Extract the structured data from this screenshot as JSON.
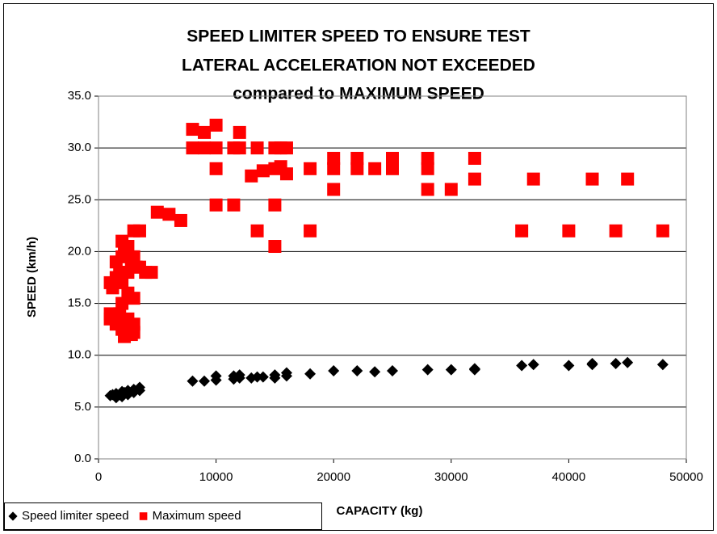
{
  "chart_data": {
    "type": "scatter",
    "title": [
      "SPEED LIMITER SPEED TO ENSURE TEST",
      "LATERAL ACCELERATION NOT EXCEEDED",
      "compared to MAXIMUM SPEED"
    ],
    "x_label": "CAPACITY (kg)",
    "y_label": "SPEED (km/h)",
    "xlim": [
      0,
      50000
    ],
    "xticks": [
      0,
      10000,
      20000,
      30000,
      40000,
      50000
    ],
    "ylim": [
      0,
      35
    ],
    "yticks": [
      {
        "value": 0,
        "label": "0.0"
      },
      {
        "value": 5,
        "label": "5.0"
      },
      {
        "value": 10,
        "label": "10.0"
      },
      {
        "value": 15,
        "label": "15.0"
      },
      {
        "value": 20,
        "label": "20.0"
      },
      {
        "value": 25,
        "label": "25.0"
      },
      {
        "value": 30,
        "label": "30.0"
      },
      {
        "value": 35,
        "label": "35.0"
      }
    ],
    "grid": true,
    "legend": "bottom-left",
    "series": [
      {
        "name": "Speed limiter speed",
        "color": "#000000",
        "marker": "diamond",
        "x": [
          1000,
          1200,
          1500,
          1500,
          1800,
          2000,
          2000,
          2200,
          2500,
          2500,
          3000,
          3000,
          3500,
          3500,
          8000,
          9000,
          10000,
          10000,
          11500,
          11500,
          12000,
          12000,
          13000,
          13500,
          14000,
          15000,
          15000,
          16000,
          16000,
          18000,
          20000,
          22000,
          23500,
          25000,
          28000,
          30000,
          32000,
          32000,
          36000,
          37000,
          40000,
          42000,
          42000,
          44000,
          45000,
          48000
        ],
        "values": [
          6.1,
          6.2,
          5.9,
          6.3,
          6.2,
          6.5,
          6.0,
          6.4,
          6.6,
          6.2,
          6.7,
          6.4,
          6.9,
          6.6,
          7.5,
          7.5,
          8.0,
          7.6,
          8.0,
          7.7,
          7.8,
          8.1,
          7.8,
          7.9,
          7.9,
          8.1,
          7.8,
          8.3,
          8.0,
          8.2,
          8.5,
          8.5,
          8.4,
          8.5,
          8.6,
          8.6,
          8.7,
          8.6,
          9.0,
          9.1,
          9.0,
          9.1,
          9.2,
          9.2,
          9.3,
          9.1
        ]
      },
      {
        "name": "Maximum speed",
        "color": "#ff0000",
        "marker": "square",
        "x": [
          1000,
          1000,
          1000,
          1200,
          1500,
          1500,
          1500,
          1800,
          1800,
          2000,
          2000,
          2000,
          2000,
          2000,
          2200,
          2200,
          2500,
          2500,
          2500,
          2500,
          2800,
          2800,
          3000,
          3000,
          3000,
          3000,
          3000,
          3200,
          3500,
          3500,
          4000,
          4500,
          5000,
          6000,
          7000,
          8000,
          8000,
          9000,
          9000,
          10000,
          10000,
          10000,
          10000,
          11500,
          11500,
          12000,
          12000,
          13000,
          13500,
          13500,
          14000,
          15000,
          15000,
          15000,
          15000,
          15500,
          15500,
          16000,
          16000,
          18000,
          18000,
          20000,
          20000,
          20000,
          22000,
          22000,
          23500,
          25000,
          25000,
          28000,
          28000,
          28000,
          30000,
          32000,
          32000,
          36000,
          37000,
          40000,
          42000,
          44000,
          45000,
          48000
        ],
        "values": [
          17,
          14,
          13.5,
          16.5,
          13,
          19,
          17.5,
          18,
          14,
          21,
          19.5,
          17,
          15,
          12.5,
          11.8,
          20,
          20.5,
          18,
          16,
          13.5,
          19,
          12,
          22,
          19.5,
          15.5,
          13,
          12.2,
          18.5,
          22,
          18.5,
          18,
          18,
          23.8,
          23.6,
          23,
          31.8,
          30,
          31.5,
          30,
          32.2,
          30,
          28,
          24.5,
          24.5,
          30,
          31.5,
          30,
          27.3,
          30,
          22,
          27.8,
          30,
          28,
          24.5,
          20.5,
          30,
          28.2,
          30,
          27.5,
          28,
          22,
          29,
          28,
          26,
          29,
          28,
          28,
          29,
          28,
          29,
          28,
          26,
          26,
          29,
          27,
          22,
          27,
          22,
          27,
          22,
          27,
          22
        ]
      }
    ]
  }
}
